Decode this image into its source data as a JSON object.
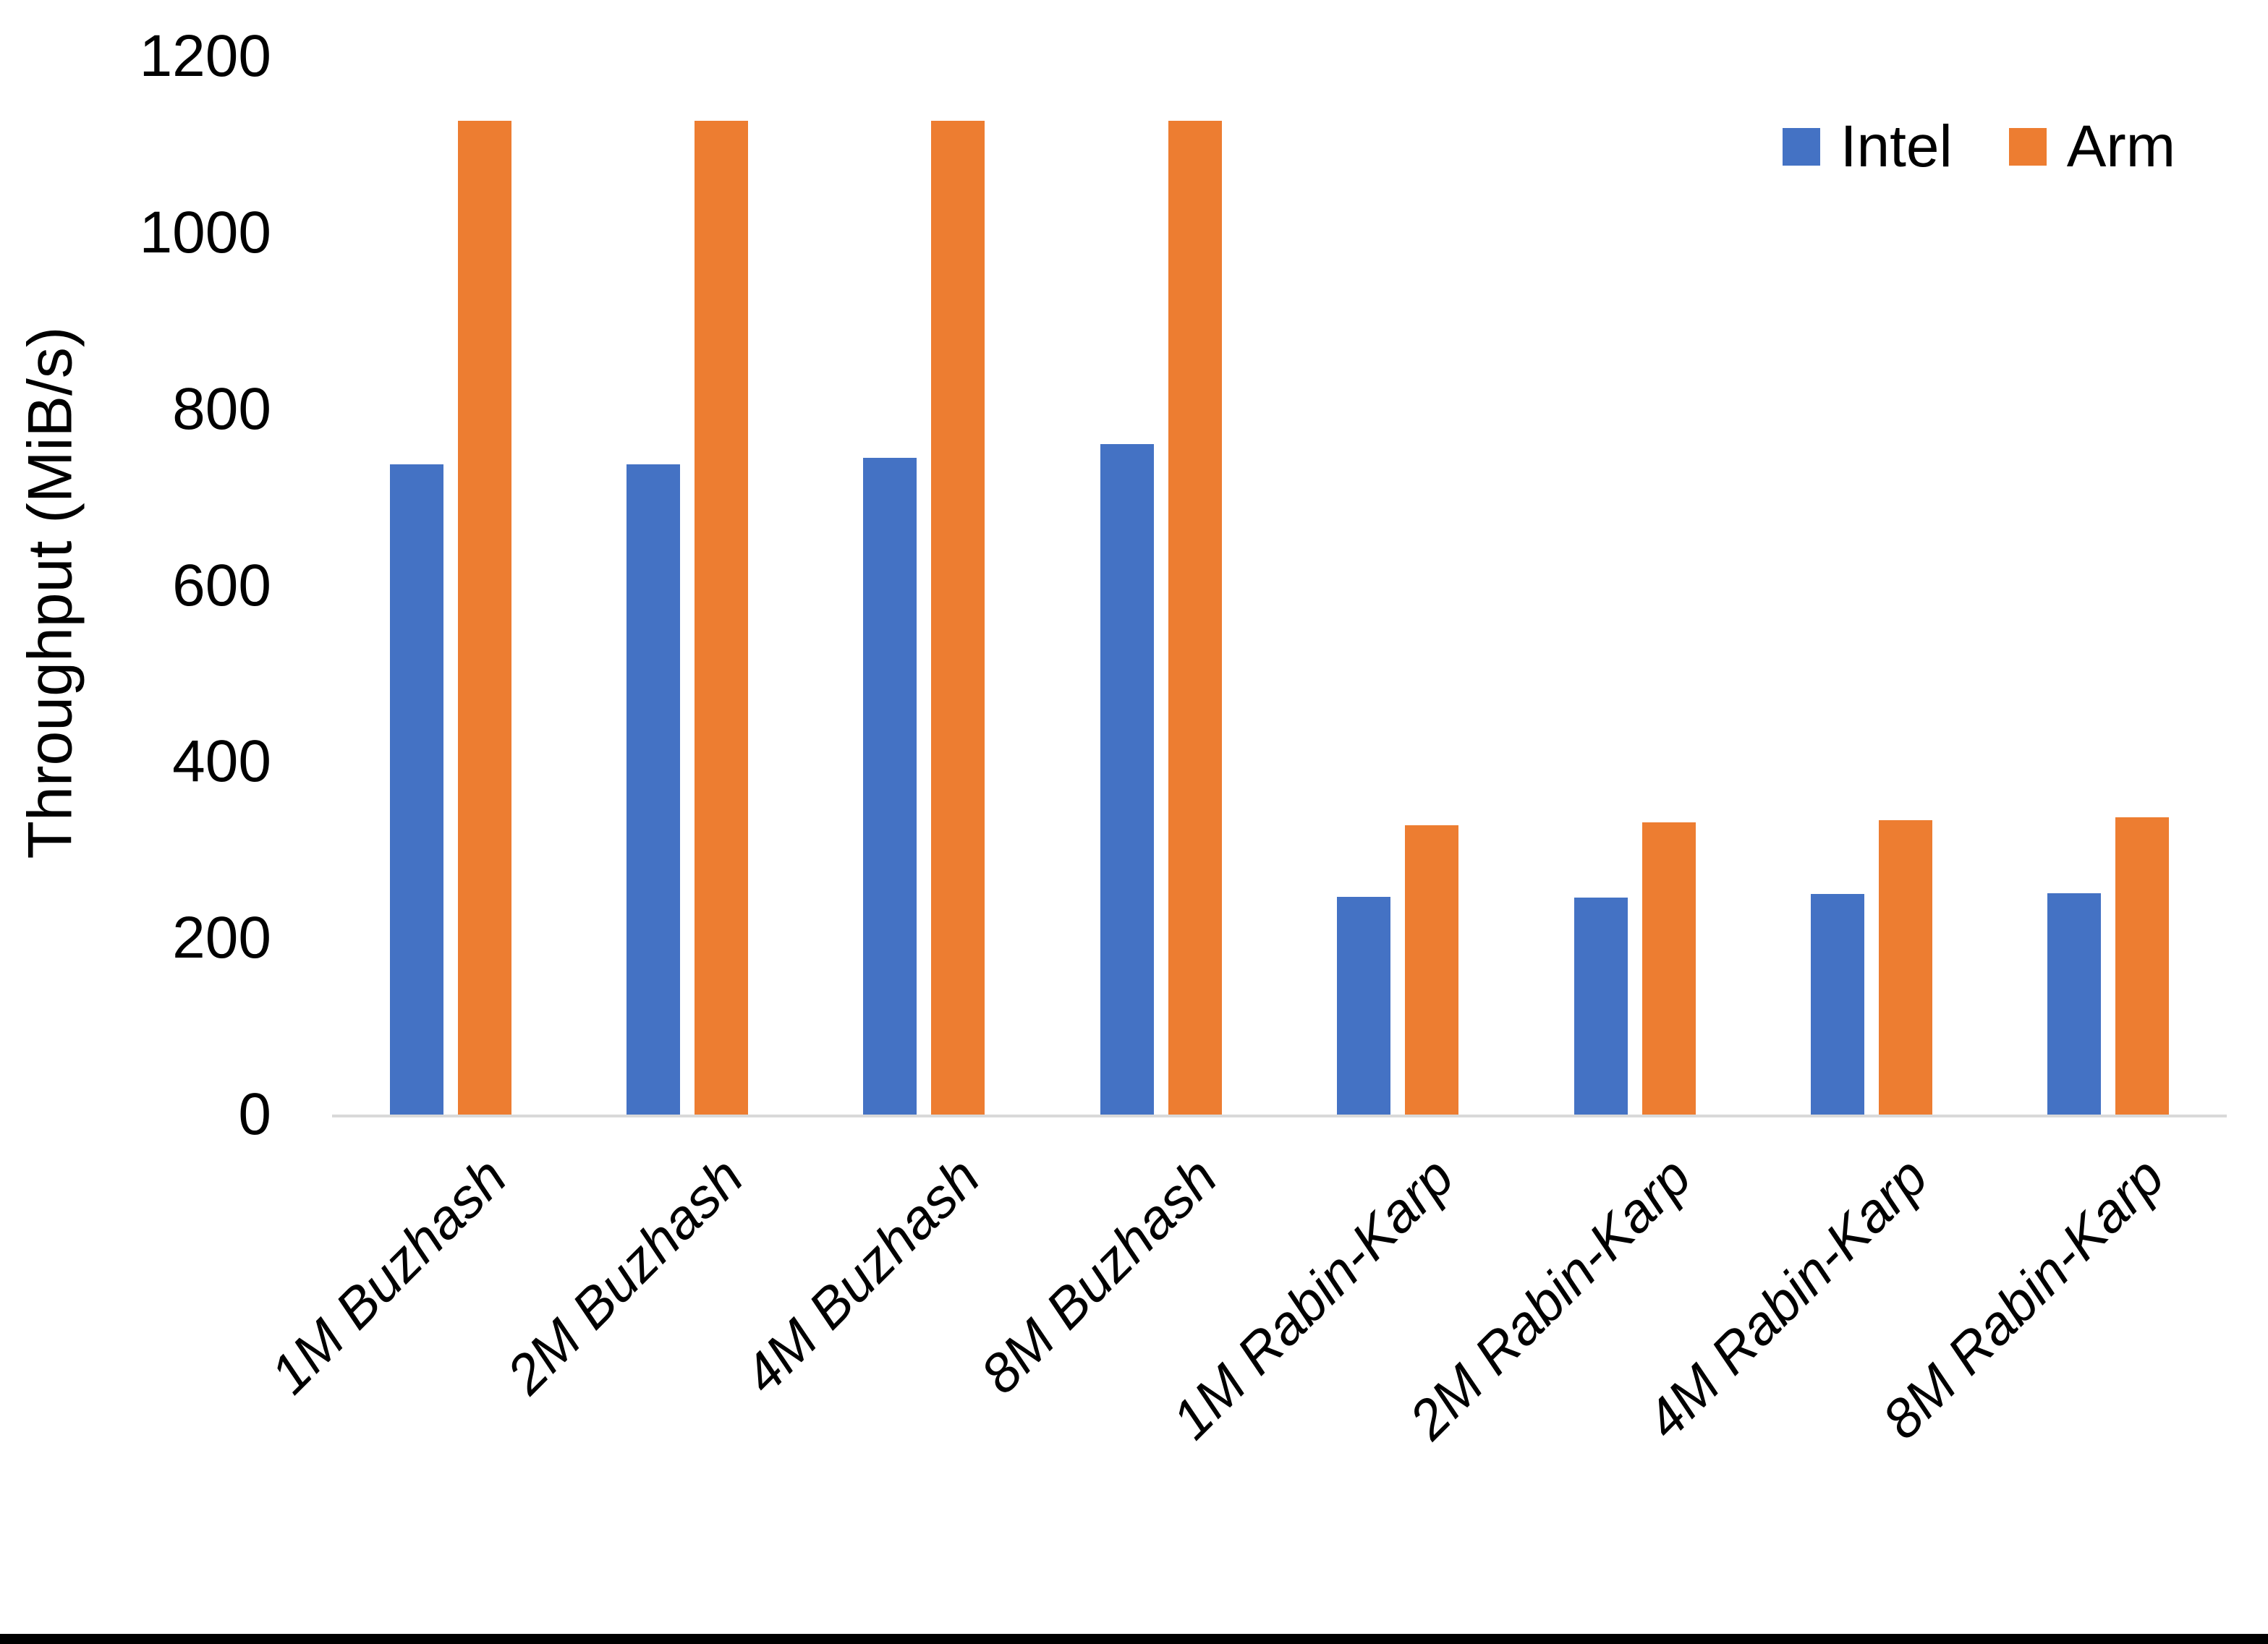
{
  "chart_data": {
    "type": "bar",
    "title": "",
    "xlabel": "",
    "ylabel": "Throughput (MiB/s)",
    "ylim": [
      0,
      1200
    ],
    "yticks": [
      0,
      200,
      400,
      600,
      800,
      1000,
      1200
    ],
    "grid": "off",
    "legend_position": "top-right",
    "categories": [
      "1M Buzhash",
      "2M Buzhash",
      "4M Buzhash",
      "8M Buzhash",
      "1M Rabin-Karp",
      "2M Rabin-Karp",
      "4M Rabin-Karp",
      "8M Rabin-Karp"
    ],
    "series": [
      {
        "name": "Intel",
        "color": "#4472C4",
        "values": [
          737,
          737,
          745,
          760,
          247,
          246,
          250,
          251
        ]
      },
      {
        "name": "Arm",
        "color": "#ED7D31",
        "values": [
          1127,
          1127,
          1127,
          1127,
          328,
          331,
          334,
          337
        ]
      }
    ]
  },
  "colors": {
    "intel_blue": "#4472C4",
    "arm_orange": "#ED7D31",
    "axis_line": "#D9D9D9",
    "text": "#000000",
    "background": "#FFFFFF",
    "bottom_border": "#000000"
  }
}
